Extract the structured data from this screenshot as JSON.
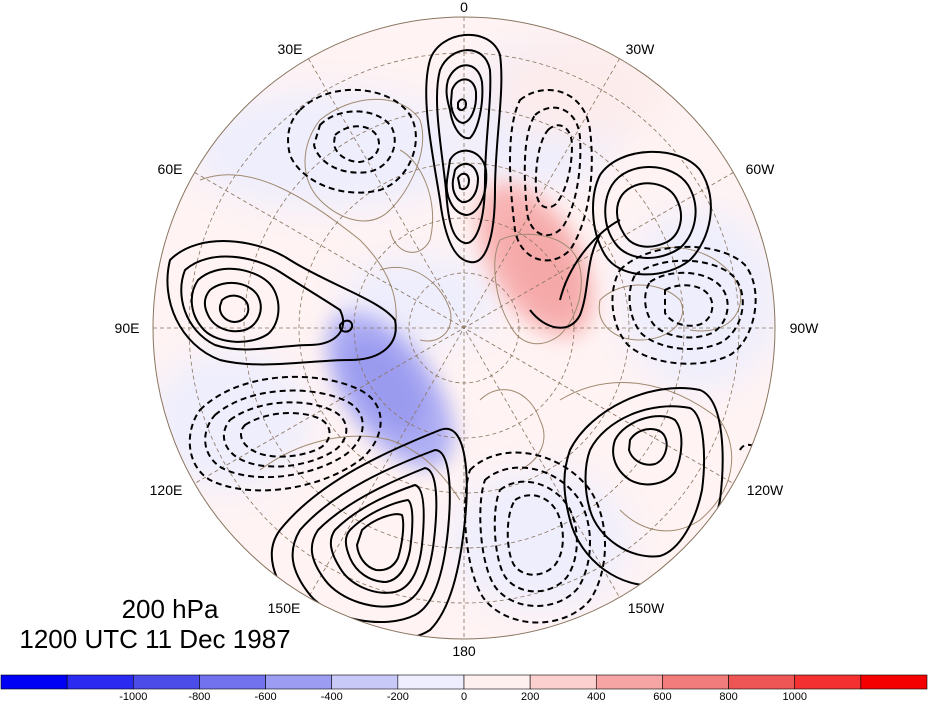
{
  "title": {
    "level": "200 hPa",
    "time": "1200 UTC 11 Dec 1987"
  },
  "longitude_labels": [
    {
      "id": "0",
      "text": "0"
    },
    {
      "id": "30w",
      "text": "30W"
    },
    {
      "id": "60w",
      "text": "60W"
    },
    {
      "id": "90w",
      "text": "90W"
    },
    {
      "id": "120w",
      "text": "120W"
    },
    {
      "id": "150w",
      "text": "150W"
    },
    {
      "id": "180",
      "text": "180"
    },
    {
      "id": "150e",
      "text": "150E"
    },
    {
      "id": "120e",
      "text": "120E"
    },
    {
      "id": "90e",
      "text": "90E"
    },
    {
      "id": "60e",
      "text": "60E"
    },
    {
      "id": "30e",
      "text": "30E"
    }
  ],
  "colorbar": {
    "ticks": [
      "-1000",
      "-800",
      "-600",
      "-400",
      "-200",
      "0",
      "200",
      "400",
      "600",
      "800",
      "1000"
    ],
    "colors": [
      "#0000f5",
      "#2a2af0",
      "#4c4ce9",
      "#7272ee",
      "#9c9cf2",
      "#c9c9f8",
      "#eeeefe",
      "#fff0f0",
      "#fdd0d0",
      "#f6a4a4",
      "#f27c7c",
      "#ee5555",
      "#f43030",
      "#f50000"
    ]
  },
  "colors": {
    "coast": "#a08a70",
    "grid": "#8a7560",
    "contour": "#000000"
  }
}
